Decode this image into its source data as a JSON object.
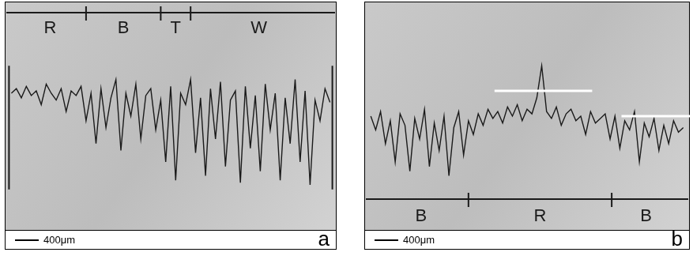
{
  "chart_data": [
    {
      "panel": "a",
      "type": "line",
      "scale_bar": "400μm",
      "color": "#1a1a1a",
      "xlim": [
        0,
        100
      ],
      "ylim": [
        0,
        100
      ],
      "tick_labels": false,
      "grid": false,
      "x": [
        2,
        3.5,
        5,
        6.5,
        8,
        9.5,
        11,
        12.5,
        14,
        15.5,
        17,
        18.5,
        20,
        21.5,
        23,
        24.5,
        26,
        27.5,
        29,
        30.5,
        32,
        33.5,
        35,
        36.5,
        38,
        39.5,
        41,
        42.5,
        44,
        45.5,
        47,
        48.5,
        50,
        51.5,
        53,
        54.5,
        56,
        57.5,
        59,
        60.5,
        62,
        63.5,
        65,
        66.5,
        68,
        69.5,
        71,
        72.5,
        74,
        75.5,
        77,
        78.5,
        80,
        81.5,
        83,
        84.5,
        86,
        87.5,
        89,
        90.5,
        92,
        93.5,
        95,
        96.5,
        98
      ],
      "values": [
        60,
        62,
        58,
        63,
        59,
        61,
        55,
        64,
        60,
        57,
        62,
        52,
        61,
        59,
        63,
        48,
        60,
        38,
        62,
        45,
        58,
        66,
        35,
        60,
        50,
        64,
        40,
        59,
        62,
        44,
        57,
        30,
        63,
        22,
        60,
        55,
        66,
        34,
        58,
        24,
        62,
        40,
        65,
        28,
        57,
        61,
        21,
        63,
        36,
        59,
        26,
        64,
        44,
        60,
        22,
        58,
        38,
        66,
        30,
        61,
        20,
        57,
        48,
        62,
        56
      ],
      "segments": [
        {
          "label": "R",
          "from": 0,
          "to": 24.5
        },
        {
          "label": "B",
          "from": 24.5,
          "to": 47
        },
        {
          "label": "T",
          "from": 47,
          "to": 56
        },
        {
          "label": "W",
          "from": 56,
          "to": 100
        }
      ]
    },
    {
      "panel": "b",
      "type": "line",
      "scale_bar": "400μm",
      "color": "#1a1a1a",
      "xlim": [
        0,
        100
      ],
      "ylim": [
        0,
        100
      ],
      "tick_labels": false,
      "grid": false,
      "x": [
        2,
        3.5,
        5,
        6.5,
        8,
        9.5,
        11,
        12.5,
        14,
        15.5,
        17,
        18.5,
        20,
        21.5,
        23,
        24.5,
        26,
        27.5,
        29,
        30.5,
        32,
        33.5,
        35,
        36.5,
        38,
        39.5,
        41,
        42.5,
        44,
        45.5,
        47,
        48.5,
        50,
        51.5,
        53,
        54.5,
        56,
        57.5,
        59,
        60.5,
        62,
        63.5,
        65,
        66.5,
        68,
        69.5,
        71,
        72.5,
        74,
        75.5,
        77,
        78.5,
        80,
        81.5,
        83,
        84.5,
        86,
        87.5,
        89,
        90.5,
        92,
        93.5,
        95,
        96.5,
        98
      ],
      "values": [
        50,
        44,
        52,
        38,
        48,
        30,
        51,
        46,
        26,
        49,
        40,
        53,
        28,
        47,
        35,
        50,
        24,
        45,
        52,
        33,
        48,
        42,
        51,
        46,
        53,
        49,
        52,
        47,
        54,
        50,
        55,
        48,
        53,
        51,
        58,
        72,
        52,
        49,
        54,
        46,
        51,
        53,
        48,
        50,
        42,
        52,
        47,
        49,
        51,
        40,
        50,
        36,
        48,
        44,
        52,
        30,
        47,
        41,
        49,
        35,
        46,
        38,
        48,
        43,
        45
      ],
      "segments": [
        {
          "label": "B",
          "from": 0,
          "to": 32
        },
        {
          "label": "R",
          "from": 32,
          "to": 76
        },
        {
          "label": "B",
          "from": 76,
          "to": 100
        }
      ],
      "levels": [
        {
          "y": 61,
          "from": 40,
          "to": 70
        },
        {
          "y": 50,
          "from": 79,
          "to": 100
        }
      ]
    }
  ]
}
